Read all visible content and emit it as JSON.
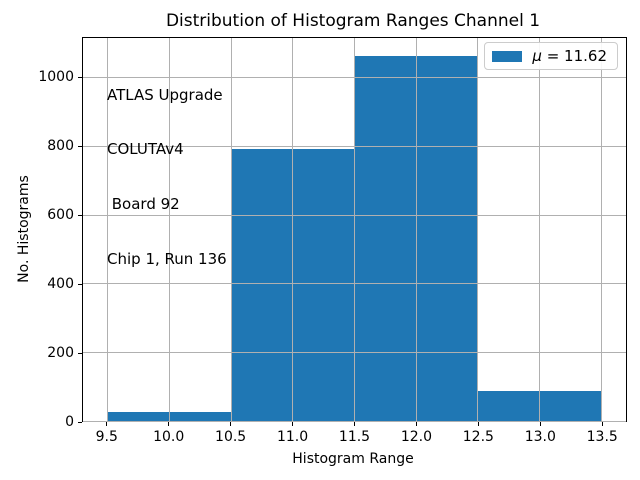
{
  "chart": {
    "title": "Distribution of Histogram Ranges Channel 1",
    "xlabel": "Histogram Range",
    "ylabel": "No. Histograms",
    "annotation_lines": [
      "ATLAS Upgrade",
      "COLUTAv4",
      " Board 92",
      "Chip 1, Run 136"
    ],
    "legend": {
      "mu_symbol": "μ",
      "value_text": " = 11.62",
      "label": "μ = 11.62"
    }
  },
  "chart_data": {
    "type": "bar",
    "title": "Distribution of Histogram Ranges Channel 1",
    "xlabel": "Histogram Range",
    "ylabel": "No. Histograms",
    "bin_edges": [
      9.5,
      10.5,
      11.5,
      12.5,
      13.5
    ],
    "values": [
      25,
      793,
      1065,
      88
    ],
    "mean": 11.62,
    "xlim": [
      9.3,
      13.7
    ],
    "ylim": [
      0,
      1116
    ],
    "xticks": [
      9.5,
      10.0,
      10.5,
      11.0,
      11.5,
      12.0,
      12.5,
      13.0,
      13.5
    ],
    "xtick_labels": [
      "9.5",
      "10.0",
      "10.5",
      "11.0",
      "11.5",
      "12.0",
      "12.5",
      "13.0",
      "13.5"
    ],
    "yticks": [
      0,
      200,
      400,
      600,
      800,
      1000
    ],
    "ytick_labels": [
      "0",
      "200",
      "400",
      "600",
      "800",
      "1000"
    ],
    "grid": true,
    "grid_over_bars": true,
    "legend_entries": [
      "μ = 11.62"
    ],
    "legend_position": "upper right",
    "bar_color": "#1f77b4",
    "grid_color": "#b0b0b0",
    "annotation": "ATLAS Upgrade\nCOLUTAv4\n Board 92\nChip 1, Run 136"
  }
}
